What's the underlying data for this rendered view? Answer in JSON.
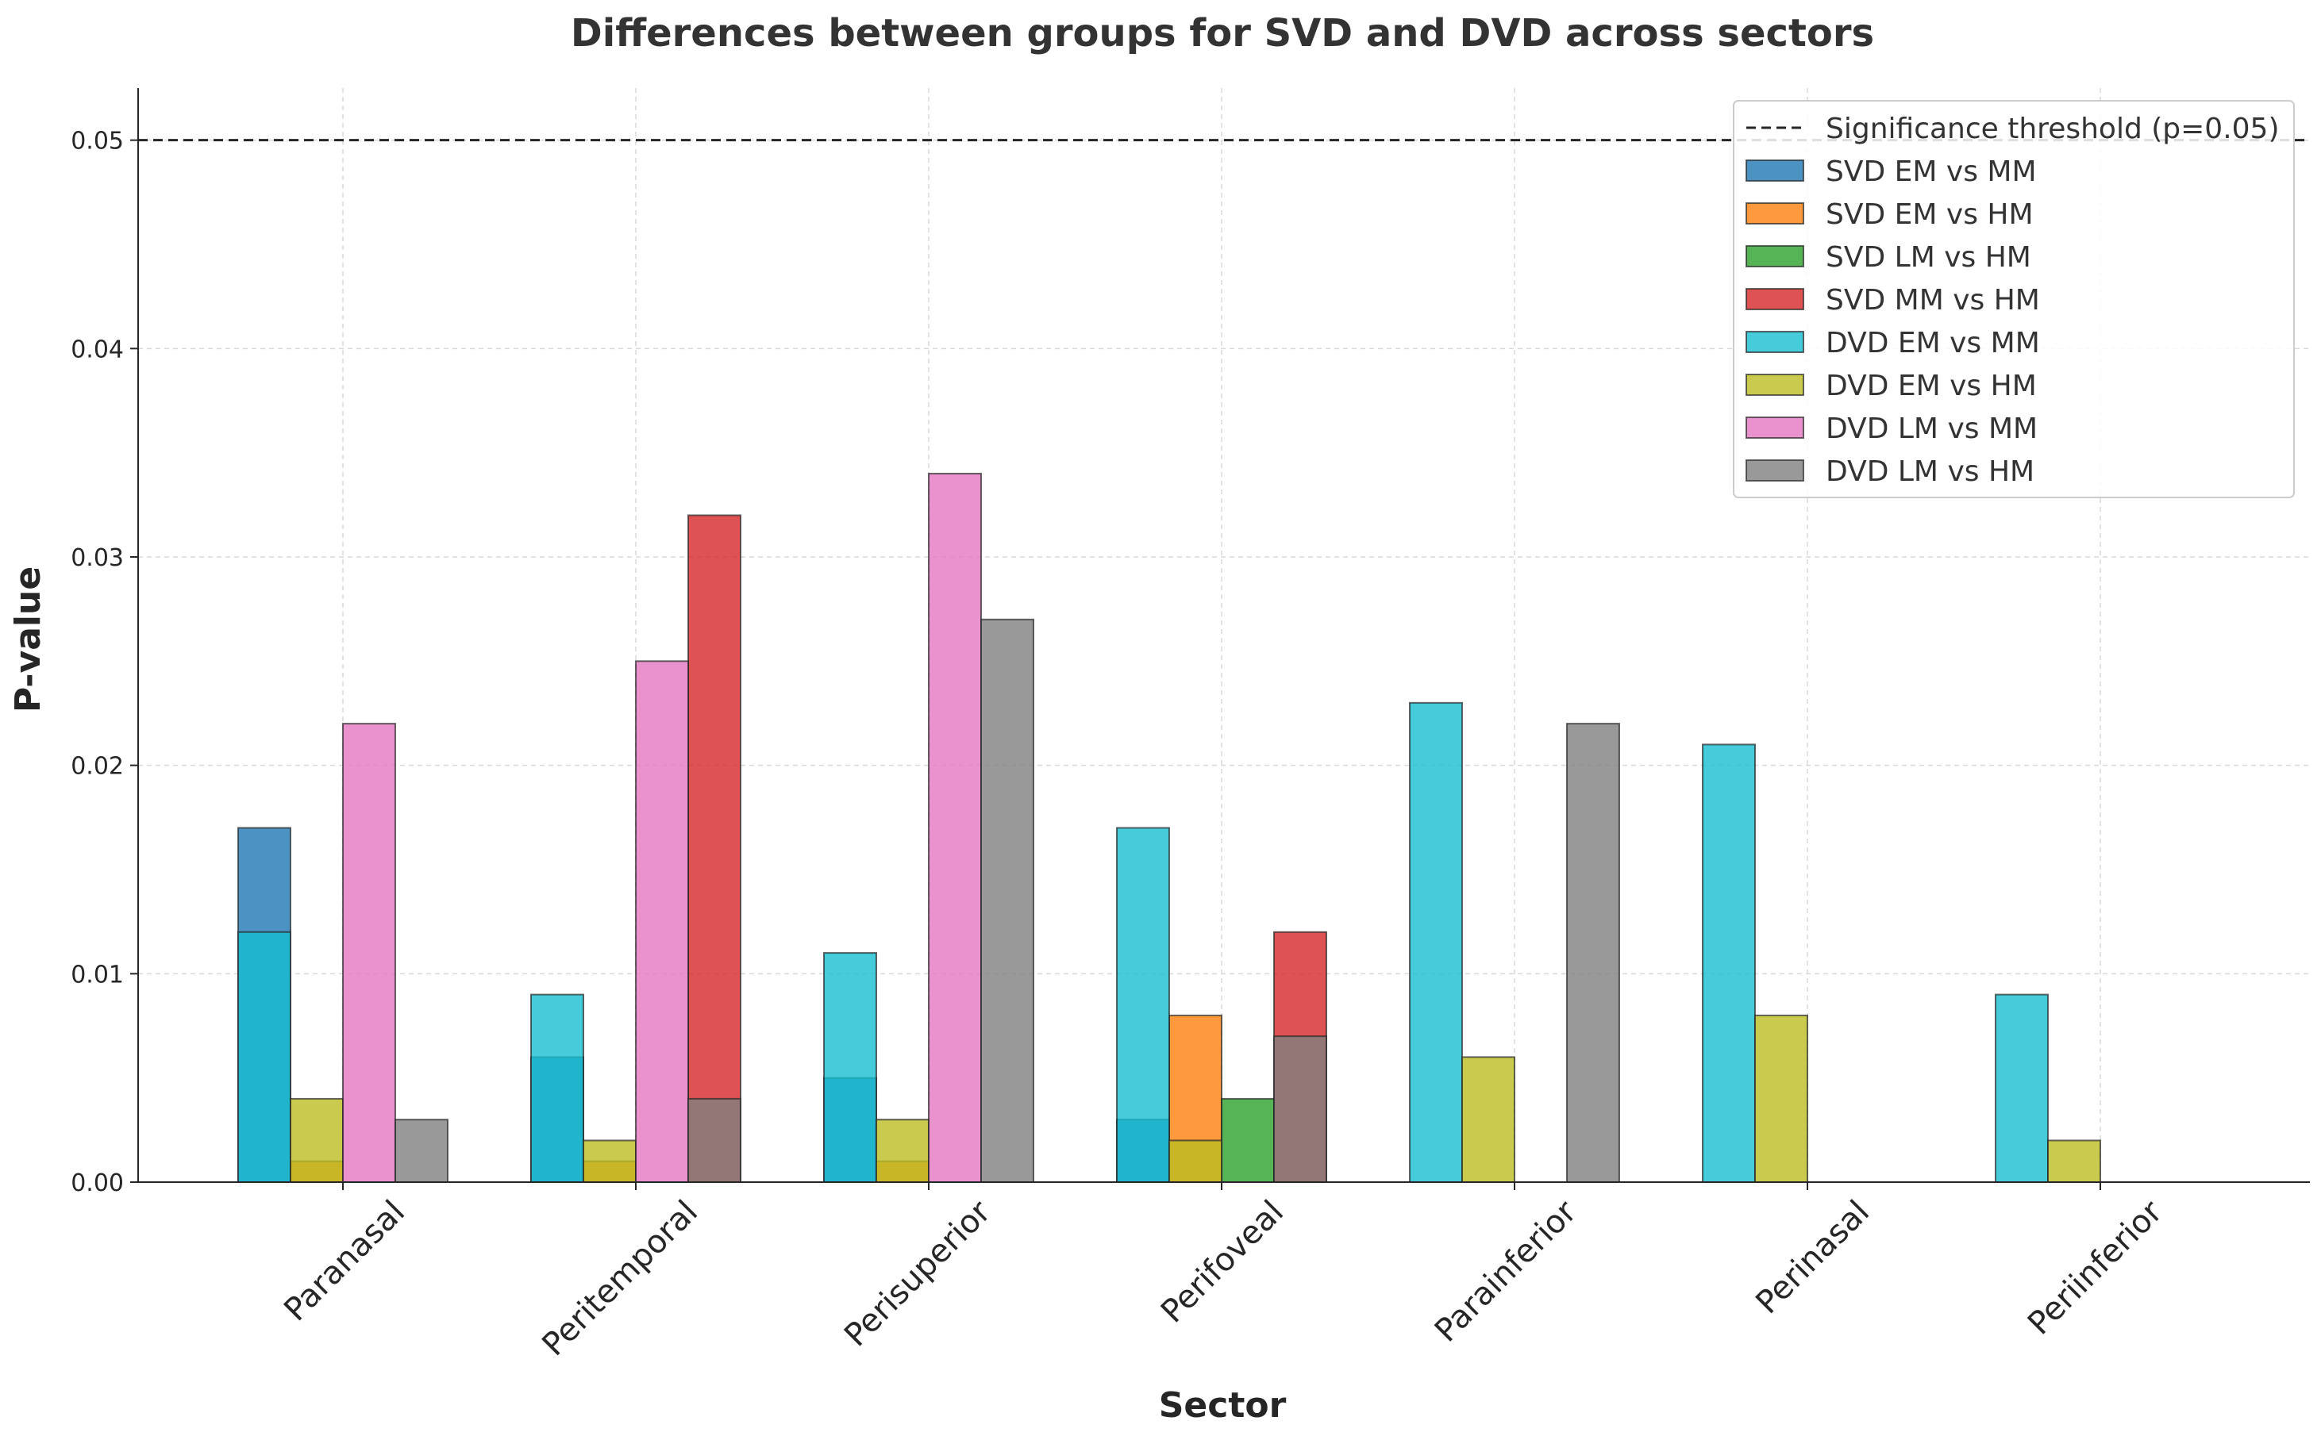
{
  "chart_data": {
    "type": "bar",
    "title": "Differences between groups for SVD and DVD across sectors",
    "xlabel": "Sector",
    "ylabel": "P-value",
    "ylim": [
      0,
      0.0525
    ],
    "yticks": [
      0.0,
      0.01,
      0.02,
      0.03,
      0.04,
      0.05
    ],
    "ytick_labels": [
      "0.00",
      "0.01",
      "0.02",
      "0.03",
      "0.04",
      "0.05"
    ],
    "grid": true,
    "legend_position": "top-right",
    "categories": [
      "Paranasal",
      "Peritemporal",
      "Perisuperior",
      "Perifoveal",
      "Parainferior",
      "Perinasal",
      "Periinferior"
    ],
    "threshold": {
      "name": "Significance threshold (p=0.05)",
      "value": 0.05,
      "color": "#262626"
    },
    "series": [
      {
        "name": "SVD EM vs MM",
        "color": "#1f77b4",
        "slot": 0,
        "values": [
          0.017,
          0.006,
          0.005,
          0.003,
          null,
          null,
          null
        ]
      },
      {
        "name": "SVD EM vs HM",
        "color": "#ff7f0e",
        "slot": 1,
        "values": [
          0.001,
          0.001,
          0.001,
          0.008,
          null,
          null,
          null
        ]
      },
      {
        "name": "SVD LM vs HM",
        "color": "#2ca02c",
        "slot": 2,
        "values": [
          null,
          null,
          null,
          0.004,
          null,
          null,
          null
        ]
      },
      {
        "name": "SVD MM vs HM",
        "color": "#d62728",
        "slot": 3,
        "values": [
          null,
          0.032,
          null,
          0.012,
          null,
          null,
          null
        ]
      },
      {
        "name": "DVD EM vs MM",
        "color": "#17becf",
        "slot": 0,
        "values": [
          0.012,
          0.009,
          0.011,
          0.017,
          0.023,
          0.021,
          0.009
        ]
      },
      {
        "name": "DVD EM vs HM",
        "color": "#bcbd22",
        "slot": 1,
        "values": [
          0.004,
          0.002,
          0.003,
          0.002,
          0.006,
          0.008,
          0.002
        ]
      },
      {
        "name": "DVD LM vs MM",
        "color": "#e377c2",
        "slot": 2,
        "values": [
          0.022,
          0.025,
          0.034,
          null,
          null,
          null,
          null
        ]
      },
      {
        "name": "DVD LM vs HM",
        "color": "#7f7f7f",
        "slot": 3,
        "values": [
          0.003,
          0.004,
          0.027,
          0.007,
          0.022,
          null,
          null
        ]
      }
    ]
  }
}
